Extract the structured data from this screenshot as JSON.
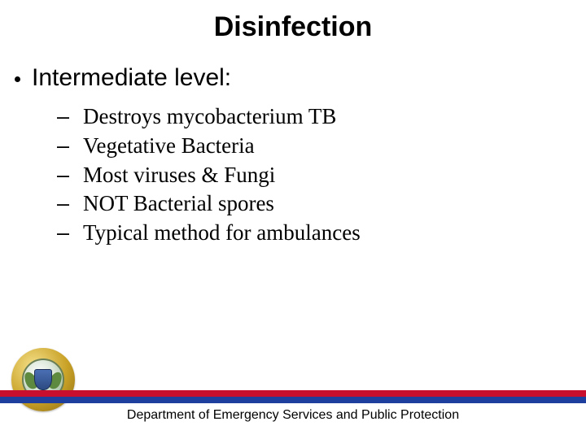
{
  "title": "Disinfection",
  "level1": {
    "text": "Intermediate level:"
  },
  "sub": [
    "Destroys mycobacterium TB",
    "Vegetative Bacteria",
    "Most viruses & Fungi",
    "NOT Bacterial spores",
    "Typical method for ambulances"
  ],
  "footer": {
    "text": "Department of Emergency Services and Public Protection",
    "stripe_top_color": "#c8102e",
    "stripe_bottom_color": "#1f3f9e"
  },
  "colors": {
    "background": "#ffffff",
    "text": "#000000"
  }
}
